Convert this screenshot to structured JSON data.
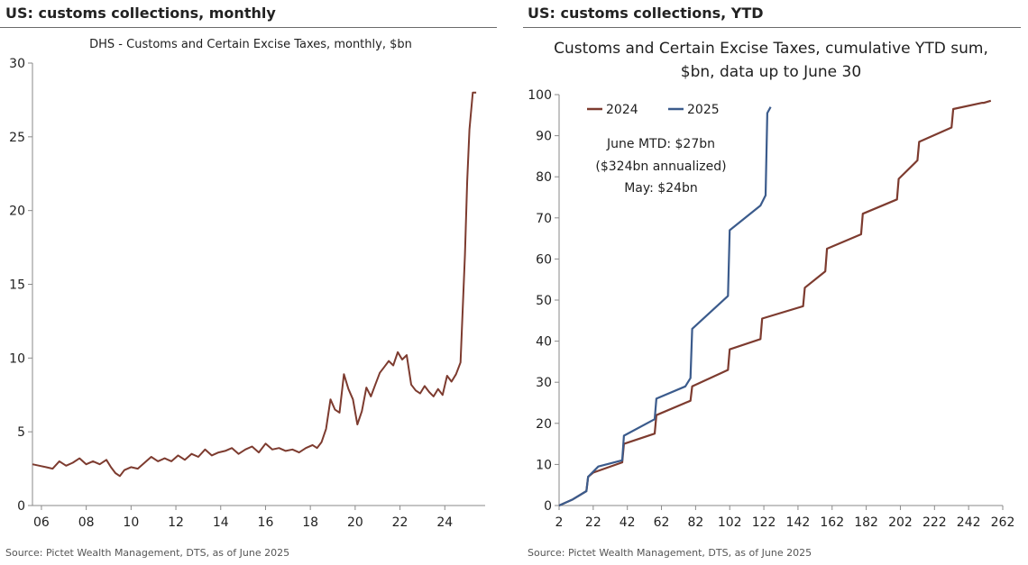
{
  "left_panel": {
    "heading": "US: customs collections, monthly",
    "source": "Source: Pictet Wealth Management, DTS, as of June 2025"
  },
  "right_panel": {
    "heading": "US: customs collections, YTD",
    "source": "Source: Pictet Wealth Management, DTS, as of June 2025"
  },
  "colors": {
    "series_2024": "#7d3b2f",
    "series_2025": "#3b5b8c",
    "monthly": "#7d3b2f"
  },
  "chart_data": [
    {
      "type": "line",
      "title": "DHS - Customs and Certain Excise Taxes, monthly, $bn",
      "xlabel": "",
      "ylabel": "",
      "xlim": [
        2005.6,
        2025.8
      ],
      "ylim": [
        0,
        30
      ],
      "x_ticks": [
        2006,
        2008,
        2010,
        2012,
        2014,
        2016,
        2018,
        2020,
        2022,
        2024
      ],
      "x_tick_labels": [
        "06",
        "08",
        "10",
        "12",
        "14",
        "16",
        "18",
        "20",
        "22",
        "24"
      ],
      "y_ticks": [
        0,
        5,
        10,
        15,
        20,
        25,
        30
      ],
      "y_tick_labels": [
        "0",
        "5",
        "10",
        "15",
        "20",
        "25",
        "30"
      ],
      "series": [
        {
          "name": "Customs and Certain Excise Taxes",
          "x": [
            2005.6,
            2005.9,
            2006.2,
            2006.5,
            2006.8,
            2007.1,
            2007.4,
            2007.7,
            2008.0,
            2008.3,
            2008.6,
            2008.9,
            2009.1,
            2009.3,
            2009.5,
            2009.7,
            2010.0,
            2010.3,
            2010.6,
            2010.9,
            2011.2,
            2011.5,
            2011.8,
            2012.1,
            2012.4,
            2012.7,
            2013.0,
            2013.3,
            2013.6,
            2013.9,
            2014.2,
            2014.5,
            2014.8,
            2015.1,
            2015.4,
            2015.7,
            2016.0,
            2016.3,
            2016.6,
            2016.9,
            2017.2,
            2017.5,
            2017.8,
            2018.1,
            2018.3,
            2018.5,
            2018.7,
            2018.9,
            2019.1,
            2019.3,
            2019.5,
            2019.7,
            2019.9,
            2020.1,
            2020.3,
            2020.5,
            2020.7,
            2020.9,
            2021.1,
            2021.3,
            2021.5,
            2021.7,
            2021.9,
            2022.1,
            2022.3,
            2022.5,
            2022.7,
            2022.9,
            2023.1,
            2023.3,
            2023.5,
            2023.7,
            2023.9,
            2024.1,
            2024.3,
            2024.5,
            2024.7,
            2024.9,
            2025.0,
            2025.1,
            2025.25,
            2025.4
          ],
          "values": [
            2.8,
            2.7,
            2.6,
            2.5,
            3.0,
            2.7,
            2.9,
            3.2,
            2.8,
            3.0,
            2.8,
            3.1,
            2.6,
            2.2,
            2.0,
            2.4,
            2.6,
            2.5,
            2.9,
            3.3,
            3.0,
            3.2,
            3.0,
            3.4,
            3.1,
            3.5,
            3.3,
            3.8,
            3.4,
            3.6,
            3.7,
            3.9,
            3.5,
            3.8,
            4.0,
            3.6,
            4.2,
            3.8,
            3.9,
            3.7,
            3.8,
            3.6,
            3.9,
            4.1,
            3.9,
            4.3,
            5.2,
            7.2,
            6.5,
            6.3,
            8.9,
            7.9,
            7.2,
            5.5,
            6.4,
            8.0,
            7.4,
            8.2,
            9.0,
            9.4,
            9.8,
            9.5,
            10.4,
            9.9,
            10.2,
            8.2,
            7.8,
            7.6,
            8.1,
            7.7,
            7.4,
            7.9,
            7.5,
            8.8,
            8.4,
            8.9,
            9.7,
            17.0,
            22.0,
            25.5,
            28.0,
            28.0
          ]
        }
      ]
    },
    {
      "type": "line",
      "title": "Customs and Certain Excise Taxes, cumulative YTD sum, $bn, data up to June 30",
      "xlabel": "",
      "ylabel": "",
      "xlim": [
        2,
        262
      ],
      "ylim": [
        0,
        100
      ],
      "x_ticks": [
        2,
        22,
        42,
        62,
        82,
        102,
        122,
        142,
        162,
        182,
        202,
        222,
        242,
        262
      ],
      "x_tick_labels": [
        "2",
        "22",
        "42",
        "62",
        "82",
        "102",
        "122",
        "142",
        "162",
        "182",
        "202",
        "222",
        "242",
        "262"
      ],
      "y_ticks": [
        0,
        10,
        20,
        30,
        40,
        50,
        60,
        70,
        80,
        90,
        100
      ],
      "y_tick_labels": [
        "0",
        "10",
        "20",
        "30",
        "40",
        "50",
        "60",
        "70",
        "80",
        "90",
        "100"
      ],
      "legend": {
        "placement": "top-left",
        "entries": [
          "2024",
          "2025"
        ]
      },
      "annotations": [
        "June MTD: $27bn",
        "($324bn annualized)",
        "May: $24bn"
      ],
      "series": [
        {
          "name": "2024",
          "x": [
            2,
            10,
            18,
            19,
            22,
            39,
            40,
            58,
            59,
            79,
            80,
            101,
            102,
            120,
            121,
            145,
            146,
            158,
            159,
            179,
            180,
            200,
            201,
            212,
            213,
            232,
            233,
            250,
            251,
            255
          ],
          "values": [
            0,
            1.5,
            3.5,
            7,
            8,
            10.5,
            15,
            17.5,
            22,
            25.5,
            29,
            33,
            38,
            40.5,
            45.5,
            48.5,
            53,
            57,
            62.5,
            66,
            71,
            74.5,
            79.5,
            84,
            88.5,
            92,
            96.5,
            98,
            98,
            98.5
          ]
        },
        {
          "name": "2025",
          "x": [
            2,
            10,
            18,
            19,
            25,
            39,
            40,
            58,
            59,
            76,
            79,
            80,
            101,
            102,
            120,
            123,
            124,
            126
          ],
          "values": [
            0,
            1.5,
            3.5,
            7,
            9.5,
            11,
            17,
            21,
            26,
            29,
            31,
            43,
            51,
            67,
            73,
            75.5,
            95.5,
            97
          ]
        }
      ]
    }
  ]
}
